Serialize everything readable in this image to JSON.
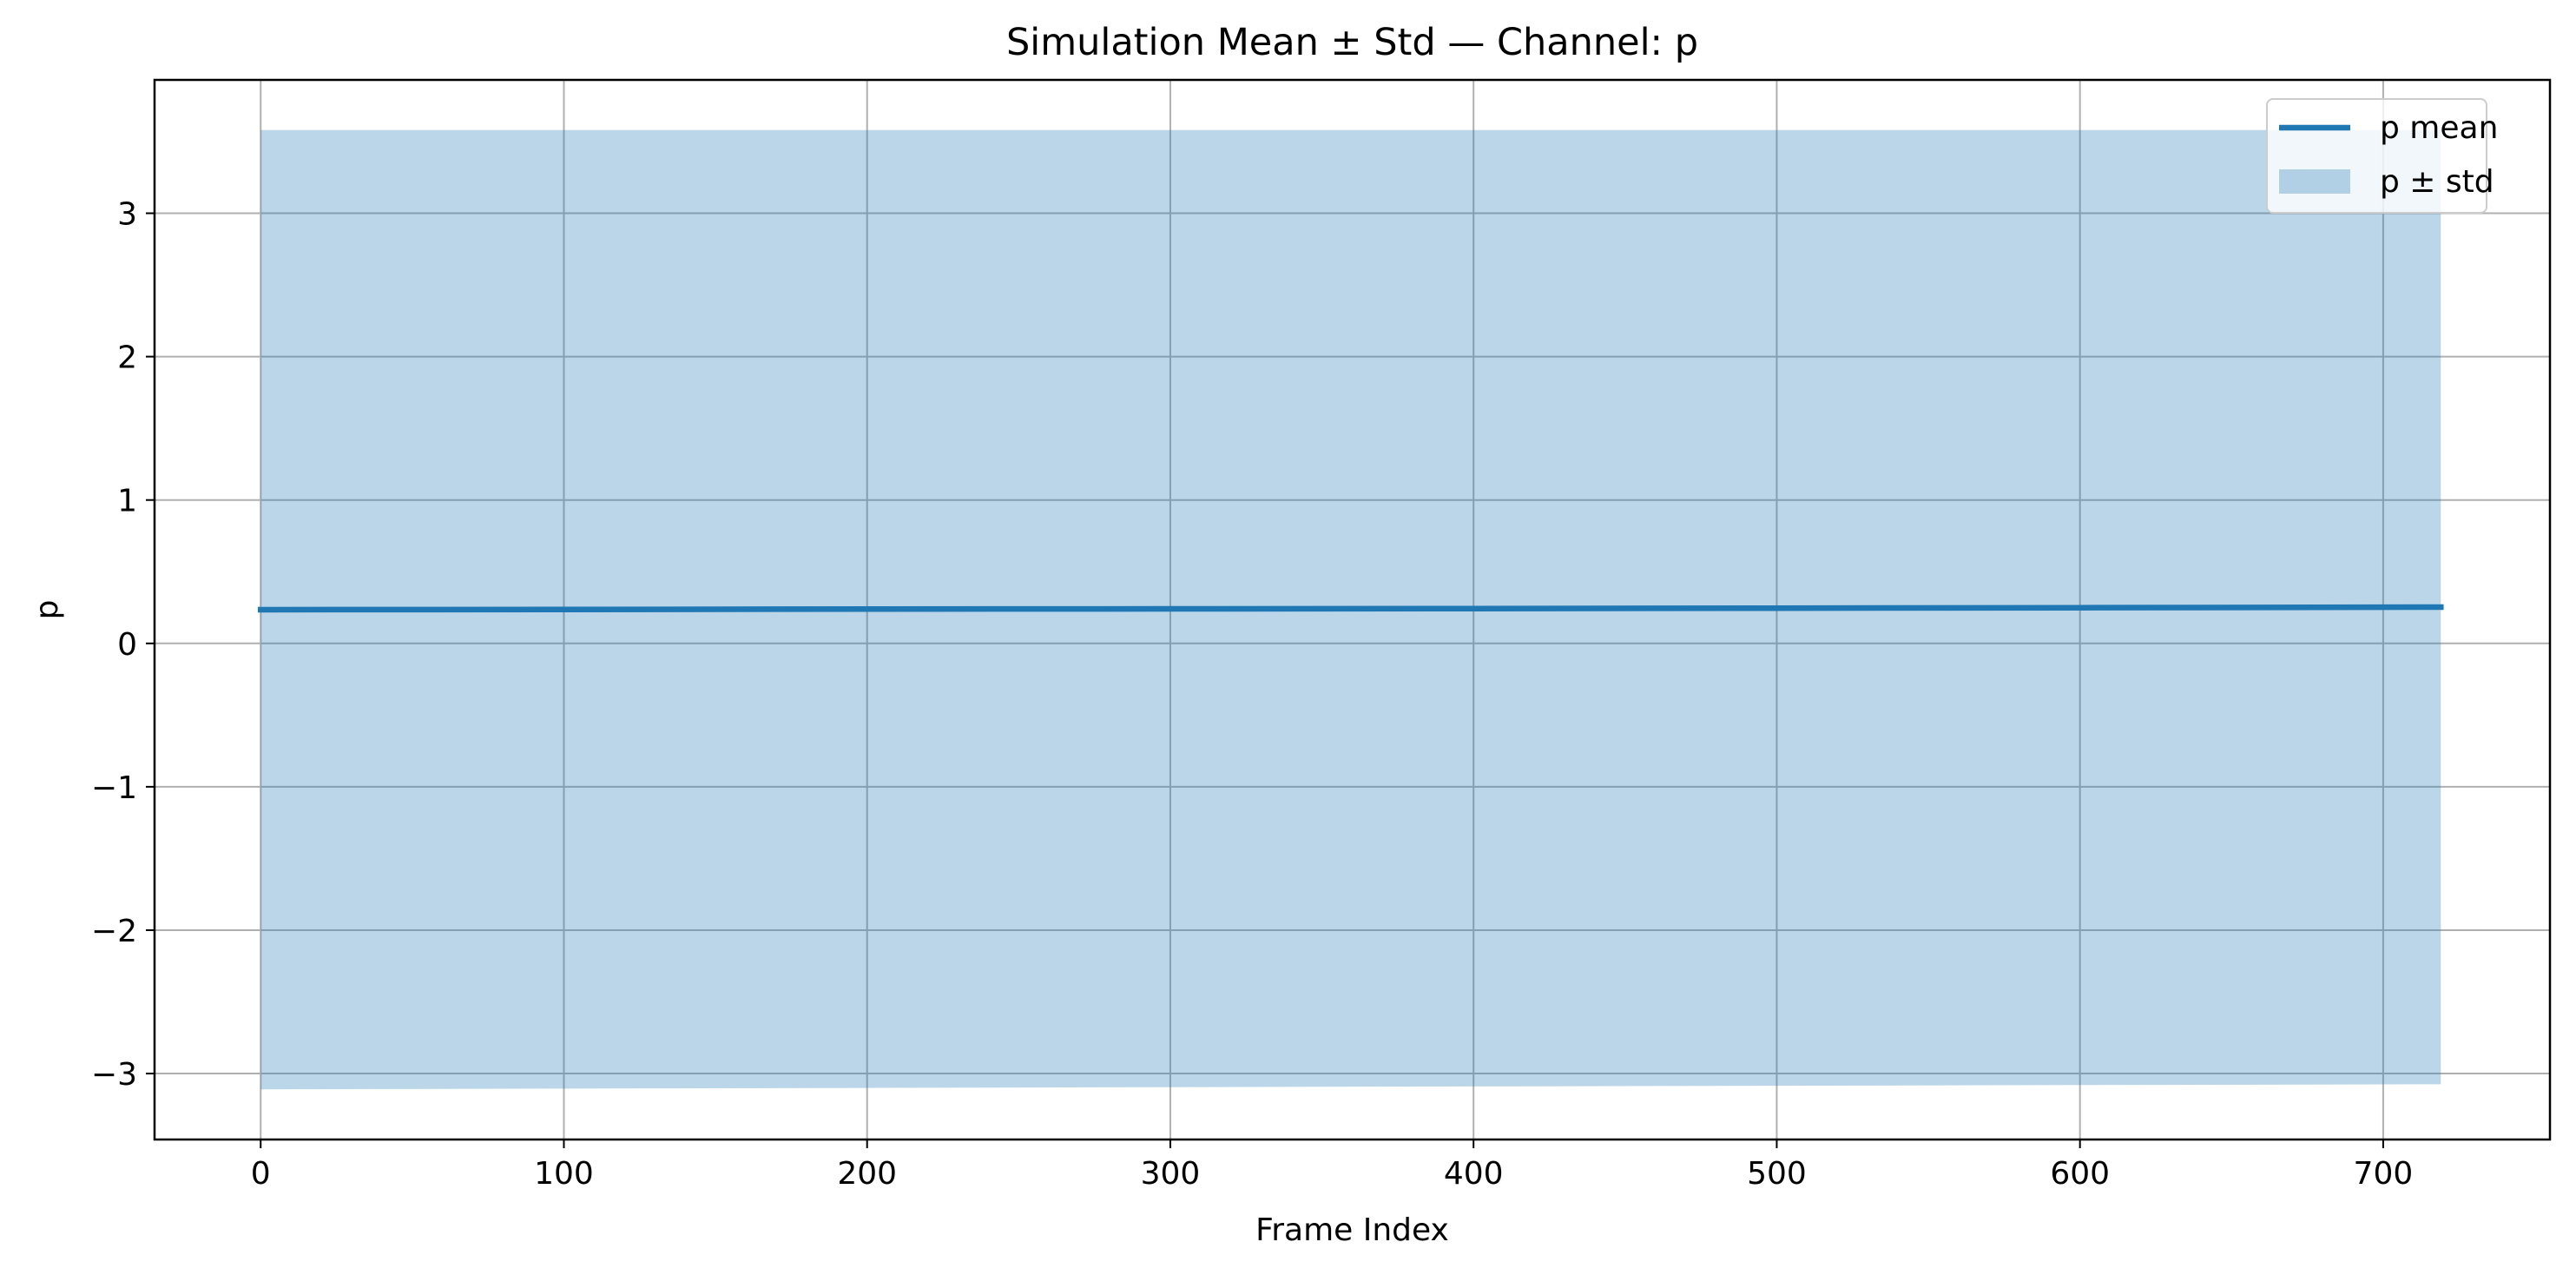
{
  "chart_data": {
    "type": "line",
    "title": "Simulation Mean ± Std — Channel: p",
    "xlabel": "Frame Index",
    "ylabel": "p",
    "xlim": [
      -35,
      755
    ],
    "ylim": [
      -3.46,
      3.93
    ],
    "x_ticks": [
      0,
      100,
      200,
      300,
      400,
      500,
      600,
      700
    ],
    "x_tick_labels": [
      "0",
      "100",
      "200",
      "300",
      "400",
      "500",
      "600",
      "700"
    ],
    "y_ticks": [
      -3,
      -2,
      -1,
      0,
      1,
      2,
      3
    ],
    "y_tick_labels": [
      "−3",
      "−2",
      "−1",
      "0",
      "1",
      "2",
      "3"
    ],
    "grid": true,
    "legend_position": "top-right",
    "series": [
      {
        "name": "p mean",
        "kind": "line",
        "color": "#1f77b4",
        "x": [
          0,
          100,
          200,
          300,
          400,
          500,
          600,
          719
        ],
        "y": [
          0.235,
          0.237,
          0.239,
          0.241,
          0.243,
          0.246,
          0.249,
          0.253
        ]
      },
      {
        "name": "p ± std",
        "kind": "band",
        "color": "#1f77b4",
        "opacity": 0.3,
        "x": [
          0,
          100,
          200,
          300,
          400,
          500,
          600,
          719
        ],
        "upper": [
          3.58,
          3.58,
          3.58,
          3.58,
          3.58,
          3.58,
          3.58,
          3.58
        ],
        "lower": [
          -3.11,
          -3.105,
          -3.1,
          -3.095,
          -3.09,
          -3.085,
          -3.08,
          -3.075
        ]
      }
    ]
  }
}
